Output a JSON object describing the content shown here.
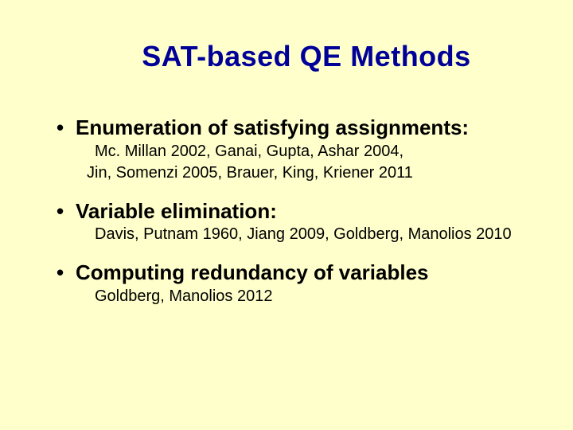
{
  "background_color": "#ffffcc",
  "title_color": "#000099",
  "text_color": "#000000",
  "title_fontsize": 36,
  "heading_fontsize": 26,
  "body_fontsize": 20,
  "slide": {
    "title": "SAT-based QE Methods",
    "bullets": [
      {
        "heading": "Enumeration of satisfying assignments:",
        "lines": [
          "Mc. Millan 2002, Ganai, Gupta, Ashar 2004,",
          "Jin, Somenzi 2005, Brauer, King, Kriener 2011"
        ]
      },
      {
        "heading": "Variable elimination:",
        "lines": [
          "Davis, Putnam 1960, Jiang 2009, Goldberg,  Manolios 2010"
        ]
      },
      {
        "heading": "Computing redundancy of variables",
        "lines": [
          "Goldberg, Manolios 2012"
        ]
      }
    ]
  }
}
